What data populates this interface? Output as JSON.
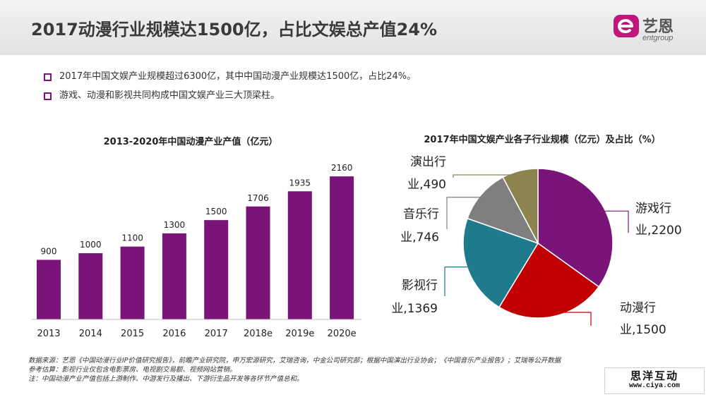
{
  "header": {
    "title": "2017动漫行业规模达1500亿，占比文娱总产值24%",
    "logo_cn": "艺恩",
    "logo_en": "entgroup"
  },
  "bullets": [
    "2017年中国文娱产业规模超过6300亿，其中中国动漫产业规模达1500亿，占比24%。",
    "游戏、动漫和影视共同构成中国文娱产业三大顶梁柱。"
  ],
  "colors": {
    "accent": "#7b1478",
    "bar": "#7b1478",
    "pie": [
      "#7b1478",
      "#c00000",
      "#1f7a8c",
      "#7f7f7f",
      "#8c8350"
    ]
  },
  "chart_data": [
    {
      "type": "bar",
      "title": "2013-2020年中国动漫产业产值（亿元）",
      "categories": [
        "2013",
        "2014",
        "2015",
        "2016",
        "2017",
        "2018e",
        "2019e",
        "2020e"
      ],
      "values": [
        900,
        1000,
        1100,
        1300,
        1500,
        1706,
        1935,
        2160
      ],
      "xlabel": "",
      "ylabel": "",
      "ylim": [
        0,
        2300
      ],
      "grid": false
    },
    {
      "type": "pie",
      "title": "2017年中国文娱产业各子行业规模（亿元）及占比（%）",
      "slices": [
        {
          "label_line1": "游戏行",
          "label_line2": "业,2200",
          "value": 2200
        },
        {
          "label_line1": "动漫行",
          "label_line2": "业,1500",
          "value": 1500
        },
        {
          "label_line1": "影视行",
          "label_line2": "业,1369",
          "value": 1369
        },
        {
          "label_line1": "音乐行",
          "label_line2": "业,746",
          "value": 746
        },
        {
          "label_line1": "演出行",
          "label_line2": "业,490",
          "value": 490
        }
      ]
    }
  ],
  "footer": {
    "source": "数据来源：艺恩《中国动漫行业IP价值研究报告》，前瞻产业研究院，申万宏源研究，艾瑞咨询，中金公司研究部；根据中国演出行业协会；《中国音乐产业报告》；艾瑞等公开数据",
    "estimate": "参考估算：影视行业仅包含电影票房、电视剧交易额、视频网站营销。",
    "note": "注：中国动漫产业产值包括上游制作、中游发行及播出、下游衍生品开发等各环节产值总和。"
  },
  "watermark": {
    "cn": "思洋互动",
    "url": "www.ciya.com"
  }
}
